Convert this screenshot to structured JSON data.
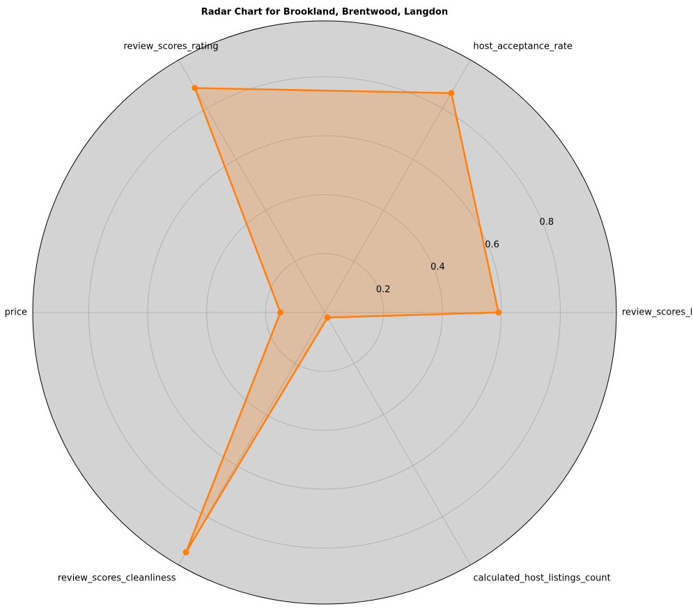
{
  "chart_data": {
    "type": "radar",
    "title": "Radar Chart for Brookland, Brentwood, Langdon",
    "axes": [
      "review_scores_location",
      "host_acceptance_rate",
      "review_scores_rating",
      "price",
      "review_scores_cleanliness",
      "calculated_host_listings_count"
    ],
    "series": [
      {
        "values": [
          0.59,
          0.86,
          0.88,
          0.15,
          0.94,
          0.02
        ]
      }
    ],
    "radial_ticks": [
      0.2,
      0.4,
      0.6,
      0.8
    ],
    "radial_tick_labels": [
      "0.2",
      "0.4",
      "0.6",
      "0.8"
    ],
    "rlim": [
      0,
      0.99
    ],
    "grid": true,
    "colors": {
      "background": "#d3d3d3",
      "grid": "#b0b0b0",
      "series_line": "#ff7f0e",
      "series_fill": "#ff7f0e",
      "outer_ring": "#000000"
    }
  }
}
